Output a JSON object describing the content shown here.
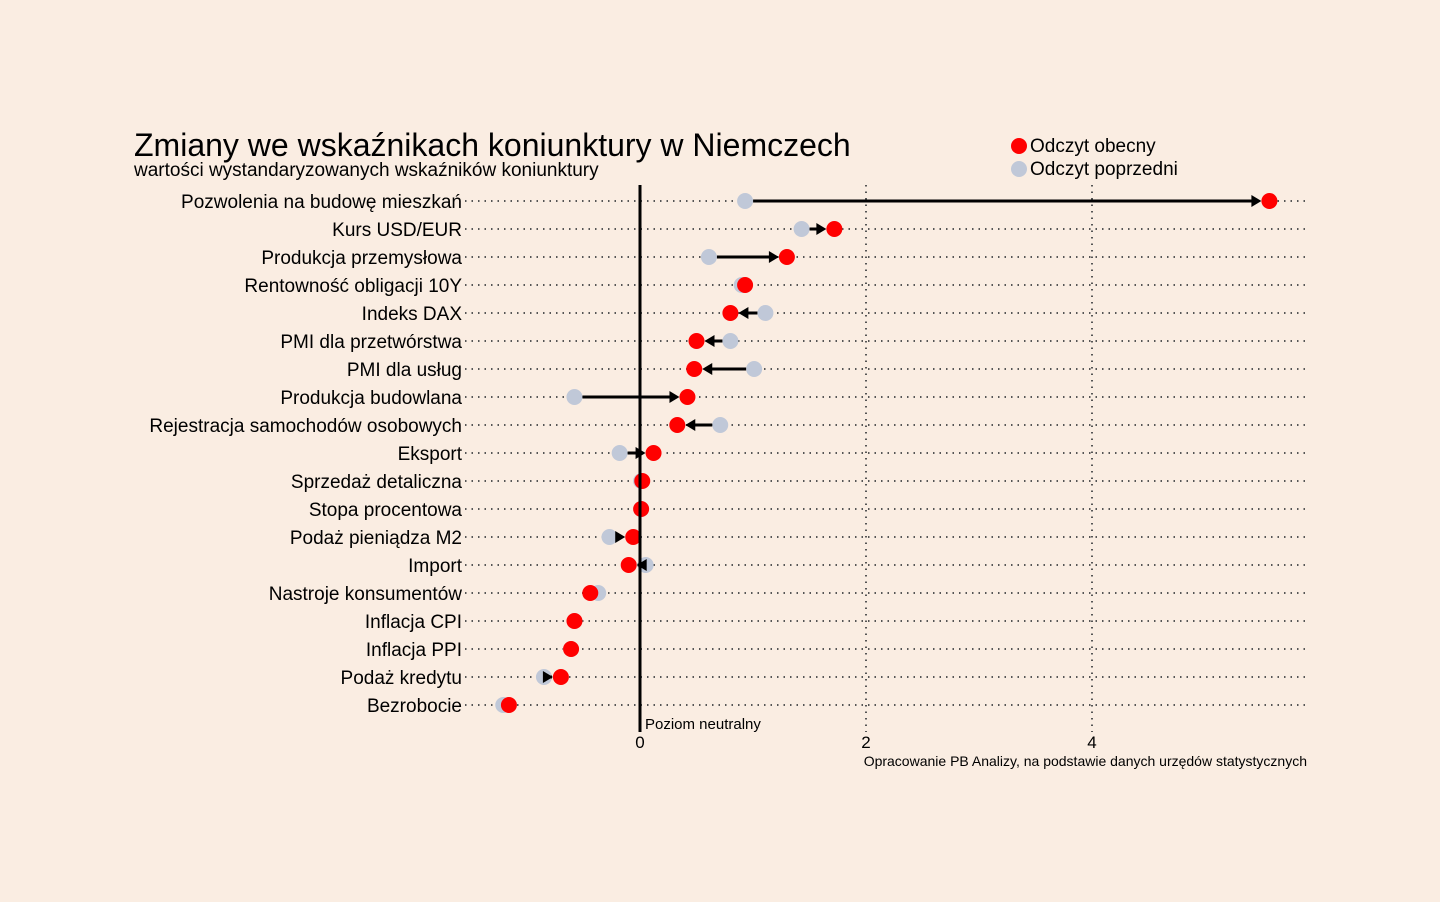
{
  "chart_data": {
    "type": "dumbbell",
    "title": "Zmiany we wskaźnikach koniunktury w Niemczech",
    "subtitle": "wartości wystandaryzowanych wskaźników koniunktury",
    "source": "Opracowanie PB Analizy, na podstawie danych urzędów statystycznych",
    "neutral_label": "Poziom neutralny",
    "xlim": [
      -1.4,
      5.9
    ],
    "xticks": [
      0,
      2,
      4
    ],
    "grid": true,
    "legend_position": "top-right",
    "legend": [
      {
        "name": "Odczyt obecny",
        "color": "#ff0000"
      },
      {
        "name": "Odczyt poprzedni",
        "color": "#c0c8d8"
      }
    ],
    "categories": [
      "Pozwolenia na budowę mieszkań",
      "Kurs USD/EUR",
      "Produkcja przemysłowa",
      "Rentowność obligacji 10Y",
      "Indeks DAX",
      "PMI dla przetwórstwa",
      "PMI dla usług",
      "Produkcja budowlana",
      "Rejestracja samochodów osobowych",
      "Eksport",
      "Sprzedaż detaliczna",
      "Stopa procentowa",
      "Podaż pieniądza M2",
      "Import",
      "Nastroje konsumentów",
      "Inflacja CPI",
      "Inflacja PPI",
      "Podaż kredytu",
      "Bezrobocie"
    ],
    "series": [
      {
        "name": "Odczyt obecny",
        "values": [
          5.57,
          1.72,
          1.3,
          0.93,
          0.8,
          0.5,
          0.48,
          0.42,
          0.33,
          0.12,
          0.02,
          0.01,
          -0.06,
          -0.1,
          -0.44,
          -0.58,
          -0.61,
          -0.7,
          -1.16
        ]
      },
      {
        "name": "Odczyt poprzedni",
        "values": [
          0.93,
          1.43,
          0.61,
          0.9,
          1.11,
          0.8,
          1.01,
          -0.58,
          0.71,
          -0.18,
          0.01,
          0.01,
          -0.27,
          0.05,
          -0.37,
          -0.58,
          -0.61,
          -0.85,
          -1.21
        ]
      }
    ]
  }
}
